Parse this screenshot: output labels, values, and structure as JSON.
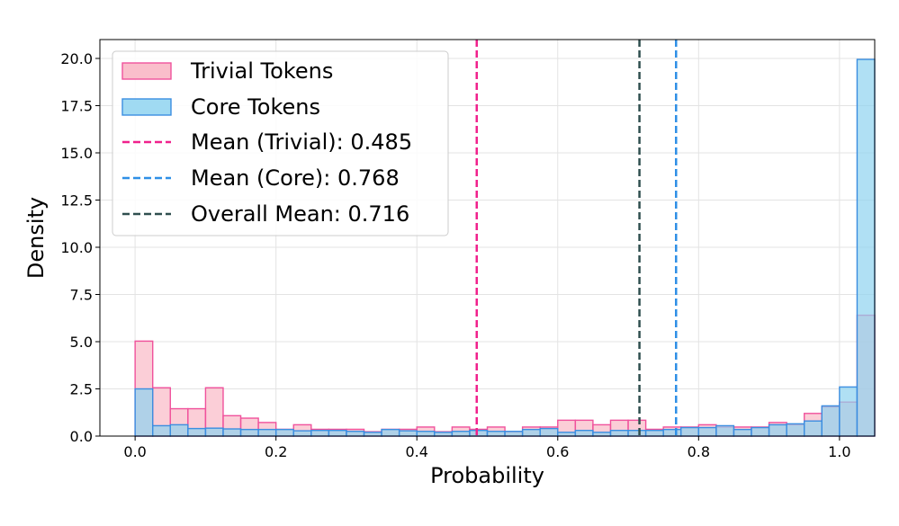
{
  "chart_data": {
    "type": "histogram",
    "xlabel": "Probability",
    "ylabel": "Density",
    "xlim": [
      -0.05,
      1.05
    ],
    "ylim": [
      0,
      21
    ],
    "xticks": [
      0.0,
      0.2,
      0.4,
      0.6,
      0.8,
      1.0
    ],
    "xtick_labels": [
      "0.0",
      "0.2",
      "0.4",
      "0.6",
      "0.8",
      "1.0"
    ],
    "yticks": [
      0,
      2.5,
      5,
      7.5,
      10,
      12.5,
      15,
      17.5,
      20
    ],
    "ytick_labels": [
      "0.0",
      "2.5",
      "5.0",
      "7.5",
      "10.0",
      "12.5",
      "15.0",
      "17.5",
      "20.0"
    ],
    "grid": true,
    "legend_position": "top-left",
    "bin_start": 0.0,
    "bin_width": 0.025,
    "series": [
      {
        "name": "Trivial Tokens",
        "fill": "#f9b3c2",
        "stroke": "#f0529c",
        "values": [
          5.03,
          2.56,
          1.45,
          1.45,
          2.56,
          1.08,
          0.95,
          0.72,
          0.36,
          0.6,
          0.36,
          0.36,
          0.36,
          0.23,
          0.36,
          0.36,
          0.48,
          0.23,
          0.48,
          0.36,
          0.48,
          0.23,
          0.48,
          0.48,
          0.84,
          0.84,
          0.6,
          0.84,
          0.84,
          0.36,
          0.48,
          0.48,
          0.6,
          0.48,
          0.48,
          0.48,
          0.72,
          0.6,
          1.2,
          1.55,
          1.8,
          6.4
        ]
      },
      {
        "name": "Core Tokens",
        "fill": "#8fd3f0",
        "stroke": "#3b8ee0",
        "values": [
          2.5,
          0.55,
          0.6,
          0.4,
          0.42,
          0.38,
          0.35,
          0.35,
          0.35,
          0.28,
          0.3,
          0.3,
          0.25,
          0.2,
          0.35,
          0.28,
          0.25,
          0.2,
          0.25,
          0.3,
          0.25,
          0.25,
          0.35,
          0.4,
          0.2,
          0.3,
          0.2,
          0.3,
          0.3,
          0.3,
          0.35,
          0.45,
          0.45,
          0.55,
          0.35,
          0.45,
          0.6,
          0.65,
          0.8,
          1.6,
          2.6,
          19.95
        ]
      }
    ],
    "mean_lines": [
      {
        "label": "Mean (Trivial): 0.485",
        "x": 0.485,
        "color": "#f0218c"
      },
      {
        "label": "Mean (Core): 0.768",
        "x": 0.768,
        "color": "#2e8fe6"
      },
      {
        "label": "Overall Mean: 0.716",
        "x": 0.716,
        "color": "#2f4f4f"
      }
    ]
  }
}
